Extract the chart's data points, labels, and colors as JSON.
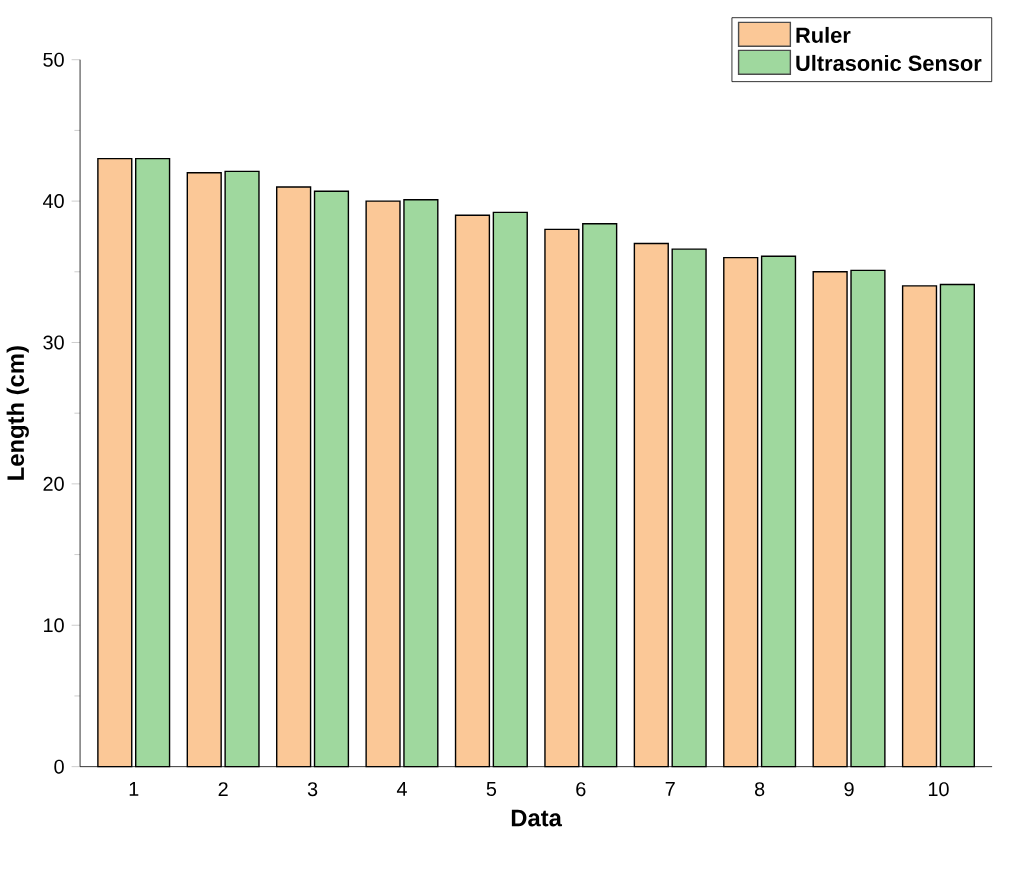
{
  "chart_data": {
    "type": "bar",
    "xlabel": "Data",
    "ylabel": "Length (cm)",
    "categories": [
      "1",
      "2",
      "3",
      "4",
      "5",
      "6",
      "7",
      "8",
      "9",
      "10"
    ],
    "series": [
      {
        "name": "Ruler",
        "color": "#fbc897",
        "values": [
          43,
          42,
          41,
          40,
          39,
          38,
          37,
          36,
          35,
          34
        ]
      },
      {
        "name": "Ultrasonic Sensor",
        "color": "#9fd89e",
        "values": [
          43.0,
          42.1,
          40.7,
          40.1,
          39.2,
          38.4,
          36.6,
          36.1,
          35.1,
          34.1
        ]
      }
    ],
    "ylim": [
      0,
      50
    ],
    "yticks": [
      0,
      10,
      20,
      30,
      40,
      50
    ],
    "legend": "top right"
  }
}
